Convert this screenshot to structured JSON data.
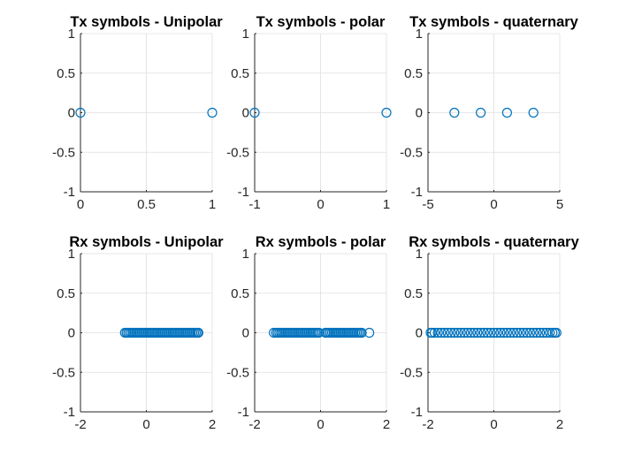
{
  "chart_data": [
    {
      "type": "scatter",
      "title": "Tx symbols - Unipolar",
      "xlim": [
        0,
        1
      ],
      "ylim": [
        -1,
        1
      ],
      "xticks": [
        0,
        0.5,
        1
      ],
      "xtick_labels": [
        "0",
        "0.5",
        "1"
      ],
      "yticks": [
        -1,
        -0.5,
        0,
        0.5,
        1
      ],
      "ytick_labels": [
        "-1",
        "-0.5",
        "0",
        "0.5",
        "1"
      ],
      "grid": true,
      "points": [
        [
          0,
          0
        ],
        [
          1,
          0
        ]
      ]
    },
    {
      "type": "scatter",
      "title": "Tx symbols - polar",
      "xlim": [
        -1,
        1
      ],
      "ylim": [
        -1,
        1
      ],
      "xticks": [
        -1,
        0,
        1
      ],
      "xtick_labels": [
        "-1",
        "0",
        "1"
      ],
      "yticks": [
        -1,
        -0.5,
        0,
        0.5,
        1
      ],
      "ytick_labels": [
        "-1",
        "-0.5",
        "0",
        "0.5",
        "1"
      ],
      "grid": true,
      "points": [
        [
          -1,
          0
        ],
        [
          1,
          0
        ]
      ]
    },
    {
      "type": "scatter",
      "title": "Tx symbols - quaternary",
      "xlim": [
        -5,
        5
      ],
      "ylim": [
        -1,
        1
      ],
      "xticks": [
        -5,
        0,
        5
      ],
      "xtick_labels": [
        "-5",
        "0",
        "5"
      ],
      "yticks": [
        -1,
        -0.5,
        0,
        0.5,
        1
      ],
      "ytick_labels": [
        "-1",
        "-0.5",
        "0",
        "0.5",
        "1"
      ],
      "grid": true,
      "points": [
        [
          -3,
          0
        ],
        [
          -1,
          0
        ],
        [
          1,
          0
        ],
        [
          3,
          0
        ]
      ]
    },
    {
      "type": "scatter",
      "title": "Rx symbols - Unipolar",
      "xlim": [
        -2,
        2
      ],
      "ylim": [
        -1,
        1
      ],
      "xticks": [
        -2,
        0,
        2
      ],
      "xtick_labels": [
        "-2",
        "0",
        "2"
      ],
      "yticks": [
        -1,
        -0.5,
        0,
        0.5,
        1
      ],
      "ytick_labels": [
        "-1",
        "-0.5",
        "0",
        "0.5",
        "1"
      ],
      "grid": true,
      "points": [
        [
          -0.65,
          0
        ],
        [
          -0.6,
          0
        ],
        [
          -0.55,
          0
        ],
        [
          -0.5,
          0
        ],
        [
          -0.45,
          0
        ],
        [
          -0.4,
          0
        ],
        [
          -0.35,
          0
        ],
        [
          -0.3,
          0
        ],
        [
          -0.25,
          0
        ],
        [
          -0.2,
          0
        ],
        [
          -0.15,
          0
        ],
        [
          -0.1,
          0
        ],
        [
          -0.05,
          0
        ],
        [
          0,
          0
        ],
        [
          0.05,
          0
        ],
        [
          0.1,
          0
        ],
        [
          0.15,
          0
        ],
        [
          0.2,
          0
        ],
        [
          0.25,
          0
        ],
        [
          0.3,
          0
        ],
        [
          0.35,
          0
        ],
        [
          0.4,
          0
        ],
        [
          0.45,
          0
        ],
        [
          0.5,
          0
        ],
        [
          0.55,
          0
        ],
        [
          0.6,
          0
        ],
        [
          0.65,
          0
        ],
        [
          0.7,
          0
        ],
        [
          0.75,
          0
        ],
        [
          0.8,
          0
        ],
        [
          0.85,
          0
        ],
        [
          0.9,
          0
        ],
        [
          0.95,
          0
        ],
        [
          1,
          0
        ],
        [
          1.05,
          0
        ],
        [
          1.1,
          0
        ],
        [
          1.15,
          0
        ],
        [
          1.2,
          0
        ],
        [
          1.25,
          0
        ],
        [
          1.3,
          0
        ],
        [
          1.35,
          0
        ],
        [
          1.4,
          0
        ],
        [
          1.45,
          0
        ],
        [
          1.5,
          0
        ],
        [
          1.55,
          0
        ],
        [
          1.58,
          0
        ]
      ]
    },
    {
      "type": "scatter",
      "title": "Rx symbols - polar",
      "xlim": [
        -2,
        2
      ],
      "ylim": [
        -1,
        1
      ],
      "xticks": [
        -2,
        0,
        2
      ],
      "xtick_labels": [
        "-2",
        "0",
        "2"
      ],
      "yticks": [
        -1,
        -0.5,
        0,
        0.5,
        1
      ],
      "ytick_labels": [
        "-1",
        "-0.5",
        "0",
        "0.5",
        "1"
      ],
      "grid": true,
      "points": [
        [
          -1.42,
          0
        ],
        [
          -1.35,
          0
        ],
        [
          -1.3,
          0
        ],
        [
          -1.25,
          0
        ],
        [
          -1.2,
          0
        ],
        [
          -1.15,
          0
        ],
        [
          -1.1,
          0
        ],
        [
          -1.05,
          0
        ],
        [
          -1,
          0
        ],
        [
          -0.95,
          0
        ],
        [
          -0.9,
          0
        ],
        [
          -0.85,
          0
        ],
        [
          -0.8,
          0
        ],
        [
          -0.75,
          0
        ],
        [
          -0.7,
          0
        ],
        [
          -0.65,
          0
        ],
        [
          -0.6,
          0
        ],
        [
          -0.55,
          0
        ],
        [
          -0.5,
          0
        ],
        [
          -0.45,
          0
        ],
        [
          -0.4,
          0
        ],
        [
          -0.35,
          0
        ],
        [
          -0.3,
          0
        ],
        [
          -0.25,
          0
        ],
        [
          -0.2,
          0
        ],
        [
          -0.15,
          0
        ],
        [
          -0.1,
          0
        ],
        [
          -0.05,
          0
        ],
        [
          0.15,
          0
        ],
        [
          0.2,
          0
        ],
        [
          0.25,
          0
        ],
        [
          0.3,
          0
        ],
        [
          0.35,
          0
        ],
        [
          0.4,
          0
        ],
        [
          0.45,
          0
        ],
        [
          0.5,
          0
        ],
        [
          0.55,
          0
        ],
        [
          0.6,
          0
        ],
        [
          0.65,
          0
        ],
        [
          0.7,
          0
        ],
        [
          0.75,
          0
        ],
        [
          0.8,
          0
        ],
        [
          0.85,
          0
        ],
        [
          0.9,
          0
        ],
        [
          0.95,
          0
        ],
        [
          1,
          0
        ],
        [
          1.05,
          0
        ],
        [
          1.1,
          0
        ],
        [
          1.15,
          0
        ],
        [
          1.2,
          0
        ],
        [
          1.25,
          0
        ],
        [
          1.48,
          0
        ]
      ]
    },
    {
      "type": "scatter",
      "title": "Rx symbols - quaternary",
      "xlim": [
        -2,
        2
      ],
      "ylim": [
        -1,
        1
      ],
      "xticks": [
        -2,
        0,
        2
      ],
      "xtick_labels": [
        "-2",
        "0",
        "2"
      ],
      "yticks": [
        -1,
        -0.5,
        0,
        0.5,
        1
      ],
      "ytick_labels": [
        "-1",
        "-0.5",
        "0",
        "0.5",
        "1"
      ],
      "grid": true,
      "points": [
        [
          -1.92,
          0
        ],
        [
          -1.88,
          0
        ],
        [
          -1.8,
          0
        ],
        [
          -1.7,
          0
        ],
        [
          -1.6,
          0
        ],
        [
          -1.5,
          0
        ],
        [
          -1.4,
          0
        ],
        [
          -1.3,
          0
        ],
        [
          -1.2,
          0
        ],
        [
          -1.1,
          0
        ],
        [
          -1,
          0
        ],
        [
          -0.9,
          0
        ],
        [
          -0.8,
          0
        ],
        [
          -0.7,
          0
        ],
        [
          -0.6,
          0
        ],
        [
          -0.5,
          0
        ],
        [
          -0.4,
          0
        ],
        [
          -0.3,
          0
        ],
        [
          -0.2,
          0
        ],
        [
          -0.1,
          0
        ],
        [
          0,
          0
        ],
        [
          0.1,
          0
        ],
        [
          0.2,
          0
        ],
        [
          0.3,
          0
        ],
        [
          0.4,
          0
        ],
        [
          0.5,
          0
        ],
        [
          0.6,
          0
        ],
        [
          0.7,
          0
        ],
        [
          0.8,
          0
        ],
        [
          0.9,
          0
        ],
        [
          1,
          0
        ],
        [
          1.1,
          0
        ],
        [
          1.2,
          0
        ],
        [
          1.3,
          0
        ],
        [
          1.4,
          0
        ],
        [
          1.5,
          0
        ],
        [
          1.6,
          0
        ],
        [
          1.7,
          0
        ],
        [
          1.78,
          0
        ],
        [
          1.85,
          0
        ],
        [
          1.9,
          0
        ]
      ]
    }
  ],
  "colors": {
    "marker": "#0072BD",
    "axes": "#262626",
    "grid": "#DFDFDF",
    "title": "#000000"
  }
}
